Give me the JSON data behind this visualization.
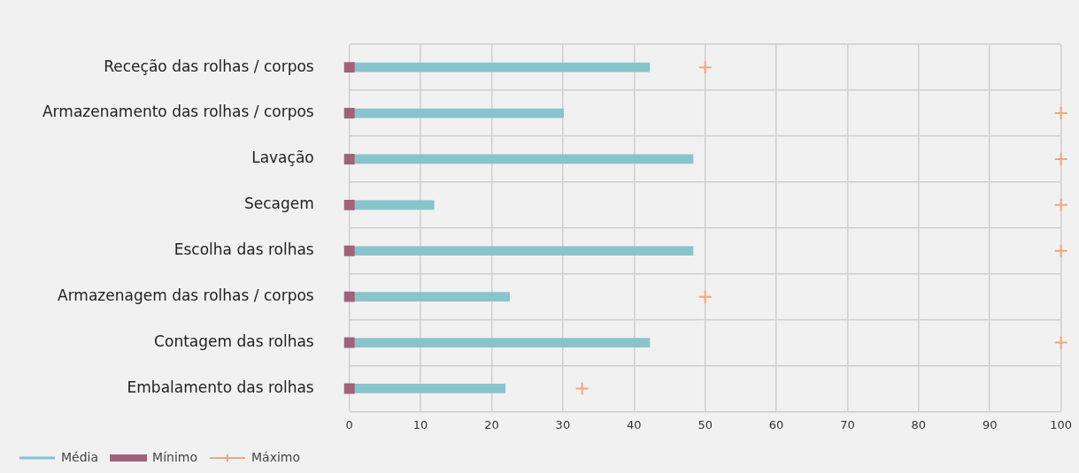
{
  "chart_data": {
    "type": "bar",
    "orientation": "horizontal",
    "categories": [
      "Receção das rolhas / corpos",
      "Armazenamento das rolhas / corpos",
      "Lavação",
      "Secagem",
      "Escolha das rolhas",
      "Armazenagem das rolhas / corpos",
      "Contagem das rolhas",
      "Embalamento das rolhas"
    ],
    "series": [
      {
        "name": "Média",
        "color": "#88c4cc",
        "values": [
          42.2,
          30.1,
          48.3,
          11.9,
          48.3,
          22.5,
          42.2,
          21.9
        ]
      },
      {
        "name": "Mínimo",
        "type": "scatter",
        "marker": "square",
        "color": "#a0627a",
        "values": [
          0,
          0,
          0,
          0,
          0,
          0,
          0,
          0
        ]
      },
      {
        "name": "Máximo",
        "type": "scatter",
        "marker": "cross",
        "color": "#f0a77e",
        "values": [
          50,
          100,
          100,
          100,
          100,
          50,
          100,
          32.7
        ]
      }
    ],
    "xlim": [
      0,
      100
    ],
    "xticks": [
      0,
      10,
      20,
      30,
      40,
      50,
      60,
      70,
      80,
      90,
      100
    ],
    "grid": true,
    "legend": "bottom left"
  }
}
